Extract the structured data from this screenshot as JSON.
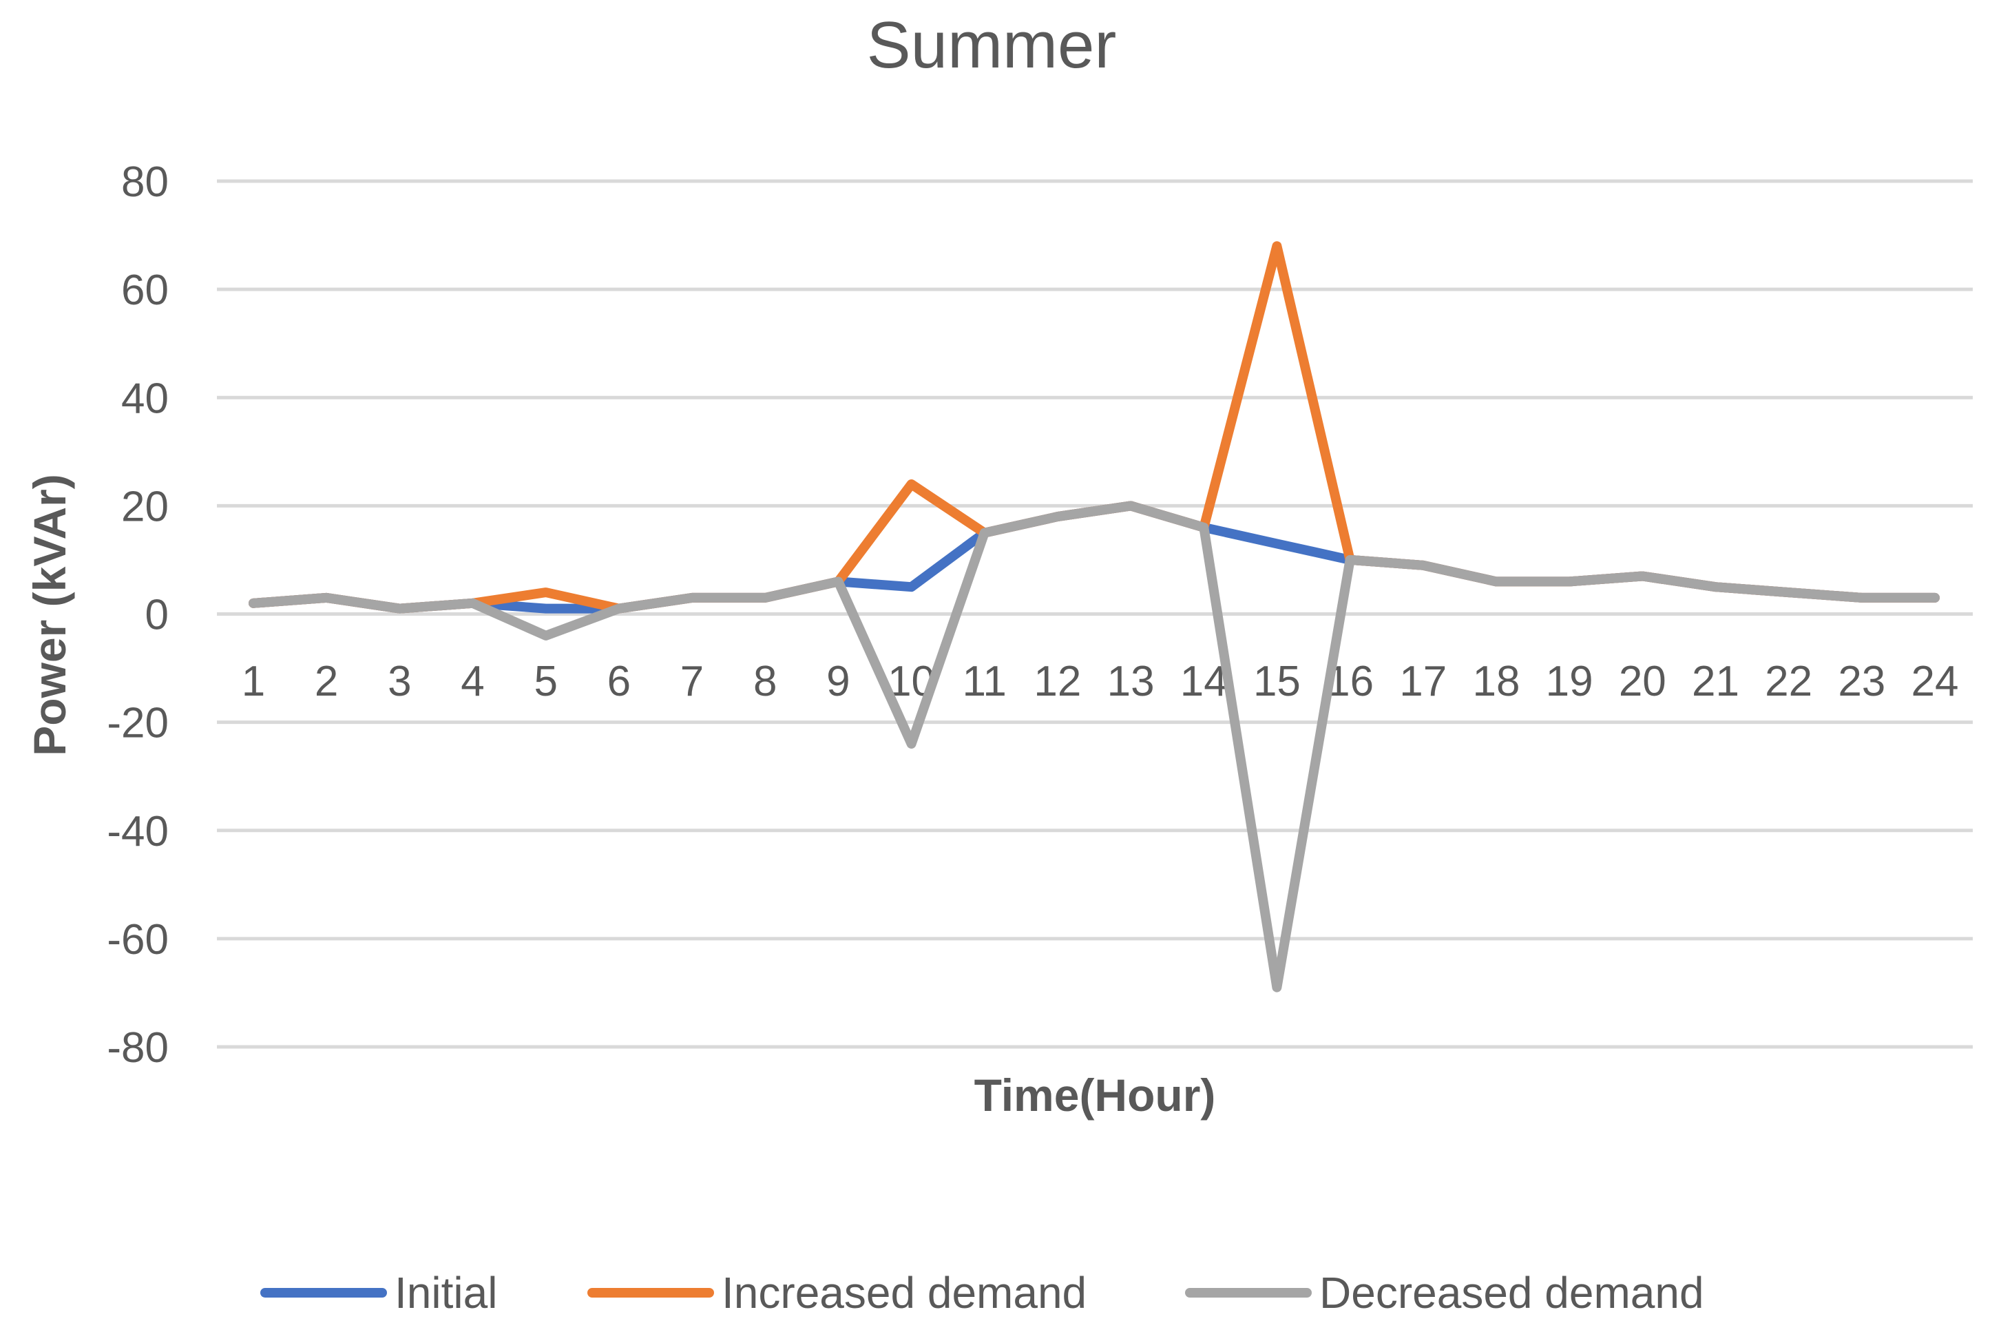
{
  "chart_data": {
    "type": "line",
    "title": "Summer",
    "xlabel": "Time(Hour)",
    "ylabel": "Power (kVAr)",
    "ylim": [
      -80,
      80
    ],
    "yticks": [
      "80",
      "60",
      "40",
      "20",
      "0",
      "-20",
      "-40",
      "-60",
      "-80"
    ],
    "ytick_values": [
      80,
      60,
      40,
      20,
      0,
      -20,
      -40,
      -60,
      -80
    ],
    "categories": [
      "1",
      "2",
      "3",
      "4",
      "5",
      "6",
      "7",
      "8",
      "9",
      "10",
      "11",
      "12",
      "13",
      "14",
      "15",
      "16",
      "17",
      "18",
      "19",
      "20",
      "21",
      "22",
      "23",
      "24"
    ],
    "grid": true,
    "legend_position": "bottom",
    "series": [
      {
        "name": "Initial",
        "color": "#4472C4",
        "values": [
          2,
          3,
          1,
          2,
          1,
          1,
          3,
          3,
          6,
          5,
          15,
          18,
          20,
          16,
          13,
          10,
          9,
          6,
          6,
          7,
          5,
          4,
          3,
          3
        ]
      },
      {
        "name": "Increased demand",
        "color": "#ED7D31",
        "values": [
          2,
          3,
          1,
          2,
          4,
          1,
          3,
          3,
          6,
          24,
          15,
          18,
          20,
          16,
          68,
          10,
          9,
          6,
          6,
          7,
          5,
          4,
          3,
          3
        ]
      },
      {
        "name": "Decreased demand",
        "color": "#A5A5A5",
        "values": [
          2,
          3,
          1,
          2,
          -4,
          1,
          3,
          3,
          6,
          -24,
          15,
          18,
          20,
          16,
          -69,
          10,
          9,
          6,
          6,
          7,
          5,
          4,
          3,
          3
        ]
      }
    ]
  }
}
